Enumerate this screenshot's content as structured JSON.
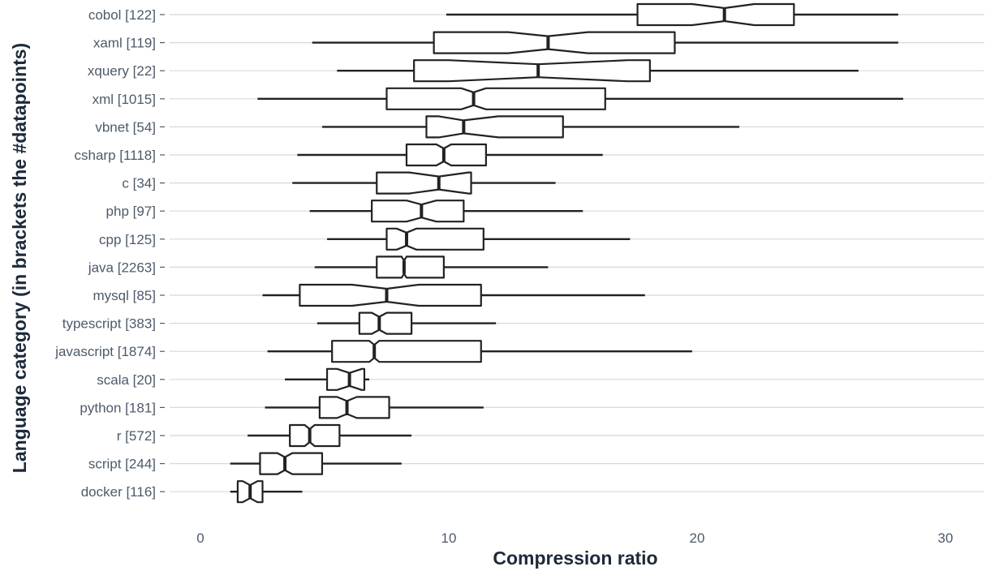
{
  "chart_data": {
    "type": "boxplot",
    "orientation": "horizontal",
    "notched": true,
    "xlabel": "Compression ratio",
    "ylabel": "Language category (in brackets the #datapoints)",
    "xlim": [
      -1.2,
      31.5
    ],
    "xticks": [
      0,
      10,
      20,
      30
    ],
    "grid": true,
    "colors": {
      "box_fill": "#ffffff",
      "box_stroke": "#222222",
      "grid": "#d8d8d8",
      "label": "#4d5a6a",
      "title": "#1c2a3a"
    },
    "series": [
      {
        "label": "cobol [122]",
        "whisker_low": 9.9,
        "q1": 17.6,
        "median": 21.1,
        "notch_low": 19.8,
        "notch_high": 22.3,
        "q3": 23.9,
        "whisker_high": 28.1
      },
      {
        "label": "xaml [119]",
        "whisker_low": 4.5,
        "q1": 9.4,
        "median": 14.0,
        "notch_low": 12.4,
        "notch_high": 15.6,
        "q3": 19.1,
        "whisker_high": 28.1
      },
      {
        "label": "xquery [22]",
        "whisker_low": 5.5,
        "q1": 8.6,
        "median": 13.6,
        "notch_low": 10.0,
        "notch_high": 17.2,
        "q3": 18.1,
        "whisker_high": 26.5
      },
      {
        "label": "xml [1015]",
        "whisker_low": 2.3,
        "q1": 7.5,
        "median": 11.0,
        "notch_low": 10.5,
        "notch_high": 11.5,
        "q3": 16.3,
        "whisker_high": 28.3
      },
      {
        "label": "vbnet [54]",
        "whisker_low": 4.9,
        "q1": 9.1,
        "median": 10.6,
        "notch_low": 9.6,
        "notch_high": 12.0,
        "q3": 14.6,
        "whisker_high": 21.7
      },
      {
        "label": "csharp [1118]",
        "whisker_low": 3.9,
        "q1": 8.3,
        "median": 9.8,
        "notch_low": 9.5,
        "notch_high": 10.1,
        "q3": 11.5,
        "whisker_high": 16.2
      },
      {
        "label": "c [34]",
        "whisker_low": 3.7,
        "q1": 7.1,
        "median": 9.6,
        "notch_low": 8.4,
        "notch_high": 10.8,
        "q3": 10.9,
        "whisker_high": 14.3
      },
      {
        "label": "php [97]",
        "whisker_low": 4.4,
        "q1": 6.9,
        "median": 8.9,
        "notch_low": 8.3,
        "notch_high": 9.5,
        "q3": 10.6,
        "whisker_high": 15.4
      },
      {
        "label": "cpp [125]",
        "whisker_low": 5.1,
        "q1": 7.5,
        "median": 8.3,
        "notch_low": 7.9,
        "notch_high": 8.7,
        "q3": 11.4,
        "whisker_high": 17.3
      },
      {
        "label": "java [2263]",
        "whisker_low": 4.6,
        "q1": 7.1,
        "median": 8.2,
        "notch_low": 8.1,
        "notch_high": 8.3,
        "q3": 9.8,
        "whisker_high": 14.0
      },
      {
        "label": "mysql [85]",
        "whisker_low": 2.5,
        "q1": 4.0,
        "median": 7.5,
        "notch_low": 6.1,
        "notch_high": 8.8,
        "q3": 11.3,
        "whisker_high": 17.9
      },
      {
        "label": "typescript [383]",
        "whisker_low": 4.7,
        "q1": 6.4,
        "median": 7.2,
        "notch_low": 6.9,
        "notch_high": 7.5,
        "q3": 8.5,
        "whisker_high": 11.9
      },
      {
        "label": "javascript [1874]",
        "whisker_low": 2.7,
        "q1": 5.3,
        "median": 7.0,
        "notch_low": 6.8,
        "notch_high": 7.2,
        "q3": 11.3,
        "whisker_high": 19.8
      },
      {
        "label": "scala [20]",
        "whisker_low": 3.4,
        "q1": 5.1,
        "median": 6.0,
        "notch_low": 5.5,
        "notch_high": 6.5,
        "q3": 6.6,
        "whisker_high": 6.8
      },
      {
        "label": "python [181]",
        "whisker_low": 2.6,
        "q1": 4.8,
        "median": 5.9,
        "notch_low": 5.5,
        "notch_high": 6.3,
        "q3": 7.6,
        "whisker_high": 11.4
      },
      {
        "label": "r [572]",
        "whisker_low": 1.9,
        "q1": 3.6,
        "median": 4.4,
        "notch_low": 4.2,
        "notch_high": 4.6,
        "q3": 5.6,
        "whisker_high": 8.5
      },
      {
        "label": "script [244]",
        "whisker_low": 1.2,
        "q1": 2.4,
        "median": 3.4,
        "notch_low": 3.1,
        "notch_high": 3.7,
        "q3": 4.9,
        "whisker_high": 8.1
      },
      {
        "label": "docker [116]",
        "whisker_low": 1.2,
        "q1": 1.5,
        "median": 2.0,
        "notch_low": 1.7,
        "notch_high": 2.3,
        "q3": 2.5,
        "whisker_high": 4.1
      }
    ]
  }
}
